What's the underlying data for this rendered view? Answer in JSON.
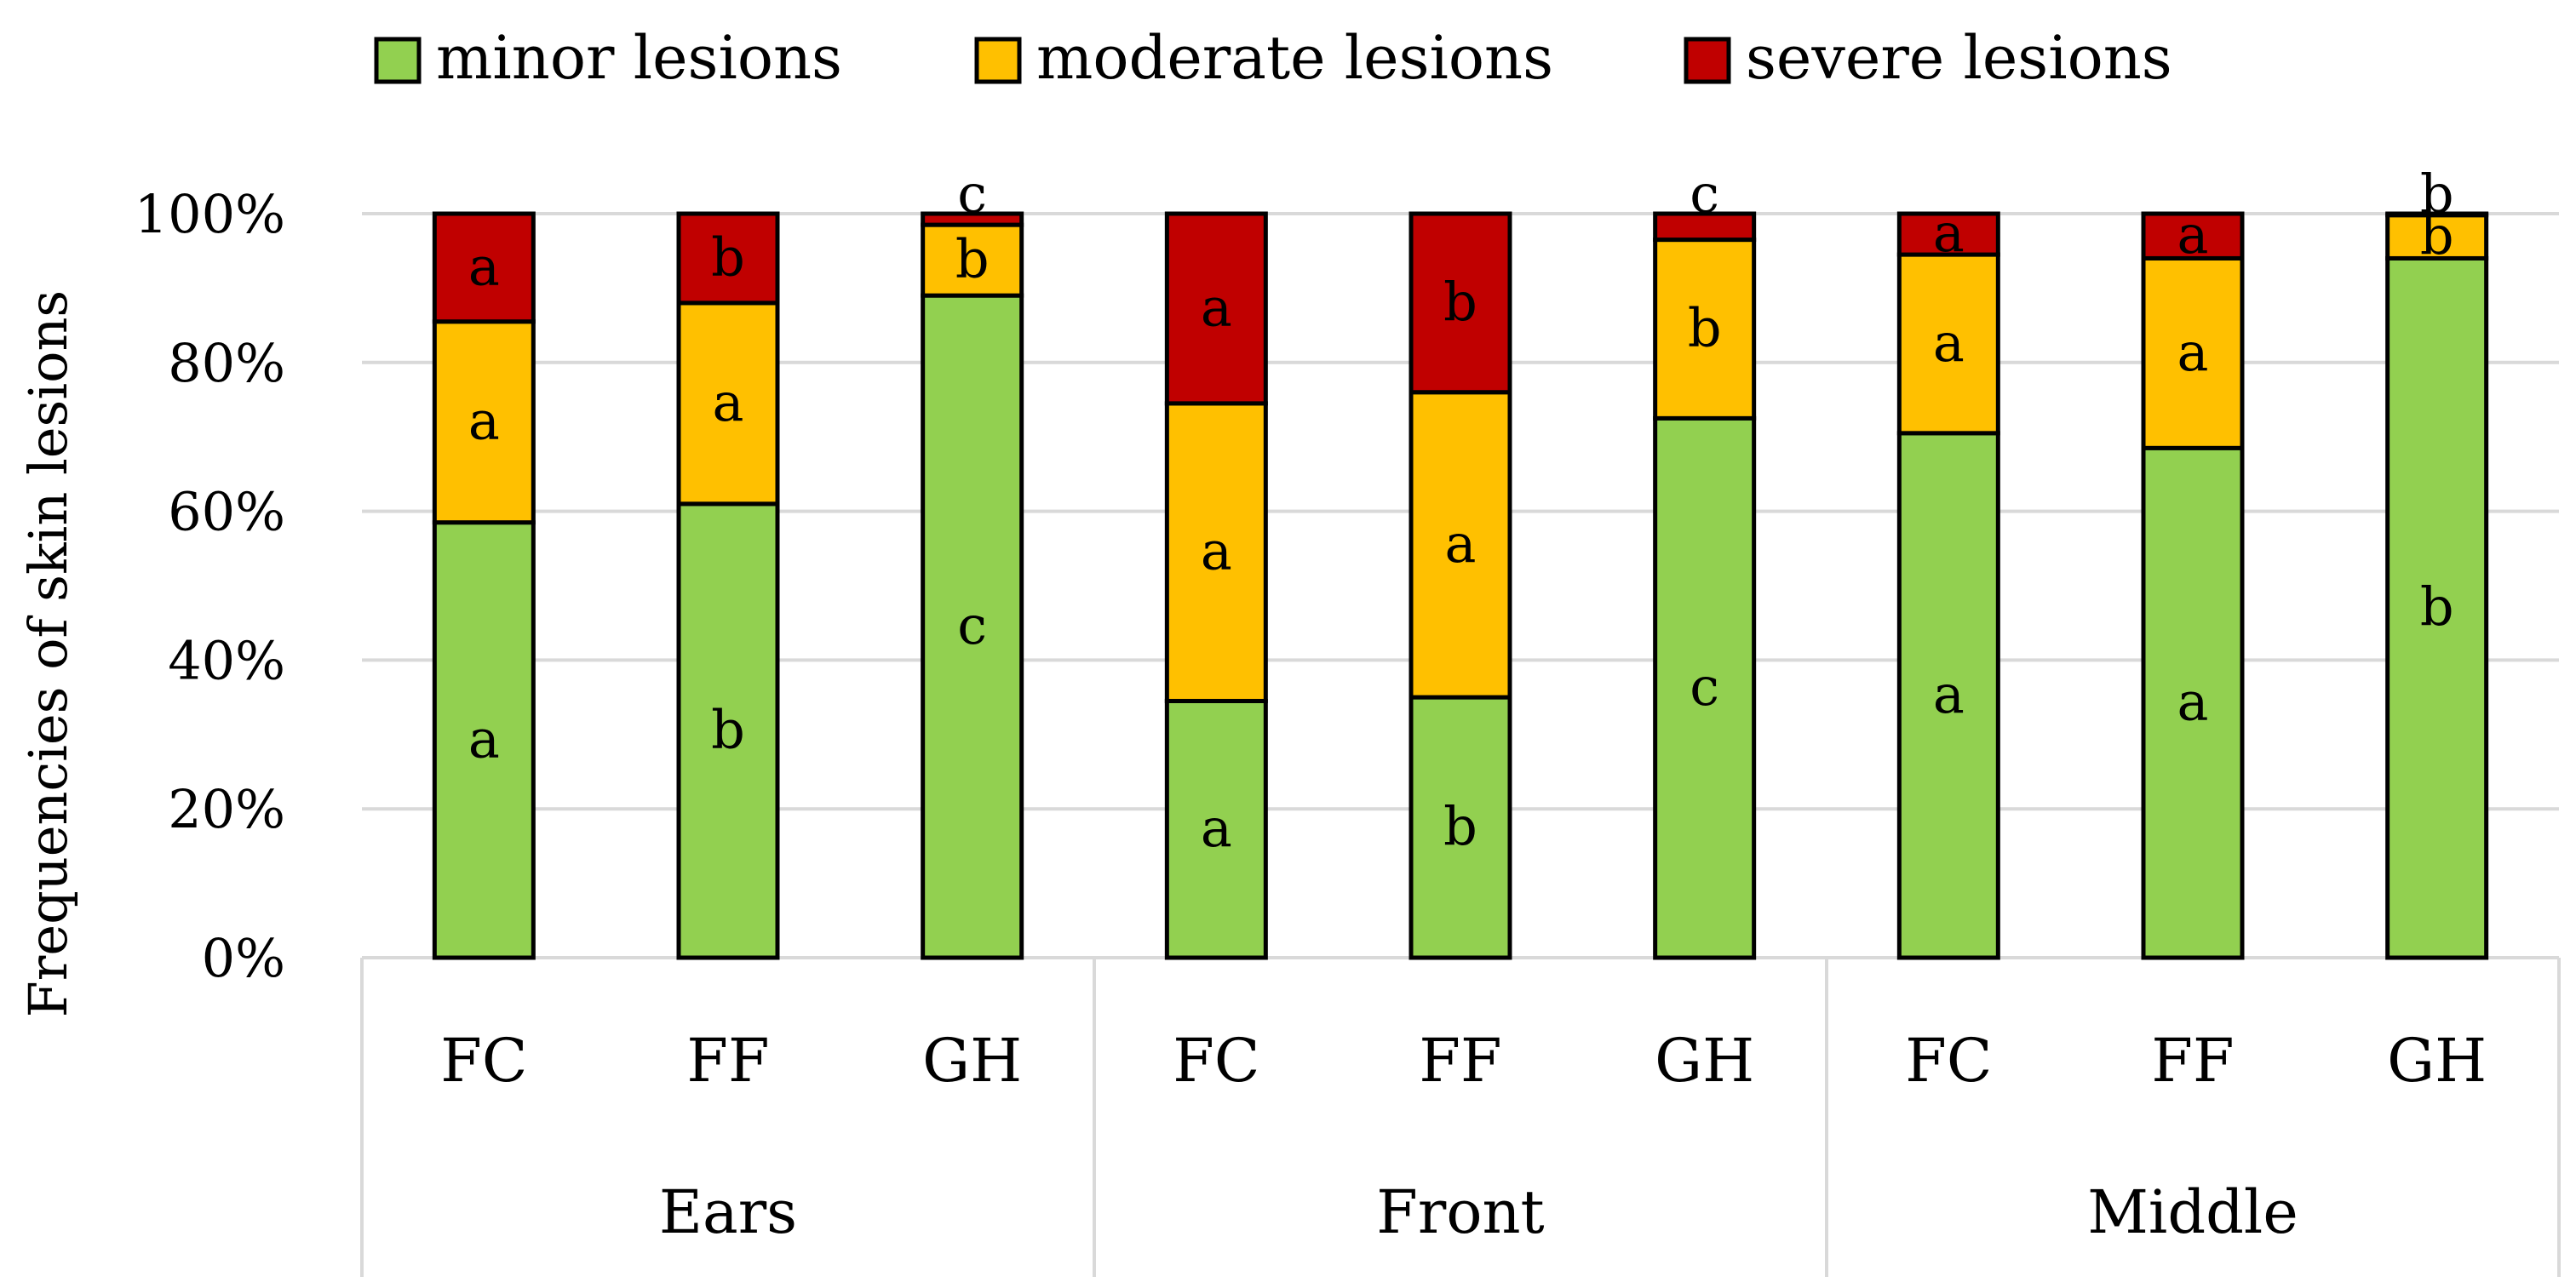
{
  "chart_data": {
    "type": "bar",
    "stacked": true,
    "ylabel": "Frequencies of skin lesions",
    "xlabel": "",
    "ylim": [
      0,
      100
    ],
    "yticks": [
      "0%",
      "20%",
      "40%",
      "60%",
      "80%",
      "100%"
    ],
    "ytick_values": [
      0,
      20,
      40,
      60,
      80,
      100
    ],
    "grid": true,
    "legend_position": "top",
    "groups": [
      {
        "name": "Ears",
        "categories": [
          "FC",
          "FF",
          "GH"
        ]
      },
      {
        "name": "Front",
        "categories": [
          "FC",
          "FF",
          "GH"
        ]
      },
      {
        "name": "Middle",
        "categories": [
          "FC",
          "FF",
          "GH"
        ]
      }
    ],
    "categories": [
      "FC",
      "FF",
      "GH",
      "FC",
      "FF",
      "GH",
      "FC",
      "FF",
      "GH"
    ],
    "series": [
      {
        "name": "minor lesions",
        "color": "#92D050",
        "values": [
          58.5,
          61,
          89,
          34.5,
          35,
          72.5,
          70.5,
          68.5,
          94
        ],
        "letters": [
          "a",
          "b",
          "c",
          "a",
          "b",
          "c",
          "a",
          "a",
          "b"
        ]
      },
      {
        "name": "moderate lesions",
        "color": "#FFC000",
        "values": [
          27,
          27,
          9.5,
          40,
          41,
          24,
          24,
          25.5,
          5.8
        ],
        "letters": [
          "a",
          "a",
          "b",
          "a",
          "a",
          "b",
          "a",
          "a",
          "b"
        ]
      },
      {
        "name": "severe lesions",
        "color": "#C00000",
        "values": [
          14.5,
          12,
          1.5,
          25.5,
          24,
          3.5,
          5.5,
          6,
          0.2
        ],
        "letters": [
          "a",
          "b",
          "c",
          "a",
          "b",
          "c",
          "a",
          "a",
          "b"
        ]
      }
    ]
  }
}
